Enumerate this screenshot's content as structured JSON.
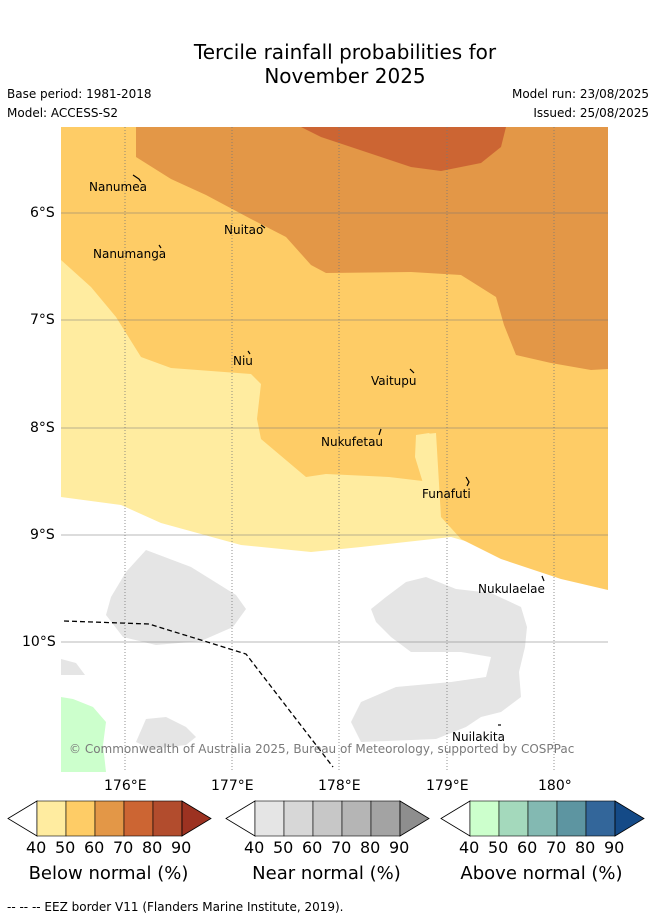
{
  "title_line1": "Tercile rainfall probabilities for",
  "title_line2": "November 2025",
  "meta": {
    "base_period": "Base period: 1981-2018",
    "model": "Model: ACCESS-S2",
    "model_run": "Model run: 23/08/2025",
    "issued": "Issued: 25/08/2025"
  },
  "map": {
    "y_ticks": [
      "6°S",
      "7°S",
      "8°S",
      "9°S",
      "10°S"
    ],
    "x_ticks": [
      "176°E",
      "177°E",
      "178°E",
      "179°E",
      "180°"
    ],
    "places": [
      "Nanumea",
      "Nuitao",
      "Nanumanga",
      "Niu",
      "Vaitupu",
      "Nukufetau",
      "Funafuti",
      "Nukulaelae",
      "Nuilakita"
    ],
    "copyright": "© Commonwealth of Australia 2025, Bureau of Meteorology, supported by COSPPac",
    "colors": {
      "below_40": "#ffeca0",
      "below_50": "#fecc66",
      "below_60": "#e39747",
      "below_70": "#cc6533",
      "near_40": "#e5e5e5",
      "above_40": "#ccffcc"
    }
  },
  "colorbars": [
    {
      "title": "Below normal (%)",
      "ticks": [
        "40",
        "50",
        "60",
        "70",
        "80",
        "90"
      ],
      "colors": [
        "#ffeca0",
        "#fecc66",
        "#e39747",
        "#cc6533",
        "#b24c2d",
        "#9c3221"
      ]
    },
    {
      "title": "Near normal (%)",
      "ticks": [
        "40",
        "50",
        "60",
        "70",
        "80",
        "90"
      ],
      "colors": [
        "#e5e5e5",
        "#d7d7d7",
        "#c7c7c7",
        "#b5b5b5",
        "#a3a3a3",
        "#8e8e8e"
      ]
    },
    {
      "title": "Above normal (%)",
      "ticks": [
        "40",
        "50",
        "60",
        "70",
        "80",
        "90"
      ],
      "colors": [
        "#ccffcc",
        "#a4d9bc",
        "#83b9b2",
        "#5d95a1",
        "#33669a",
        "#144a87"
      ]
    }
  ],
  "footnote": "--  --  -- EEZ border V11 (Flanders Marine Institute, 2019)."
}
